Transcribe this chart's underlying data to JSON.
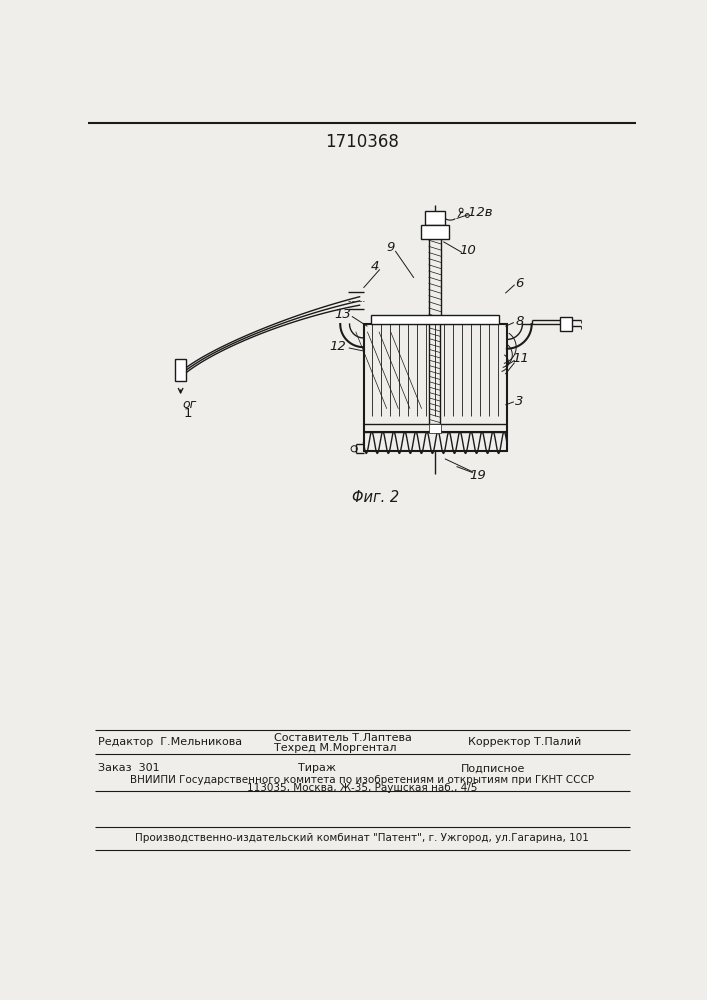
{
  "title": "1710368",
  "bg_color": "#f0eeea",
  "draw_color": "#1a1a1a",
  "label_fontsize": 9.5,
  "caption_fontsize": 10.5,
  "fig_caption": "Φиг. 2",
  "label_og": "ог",
  "footer_editor": "Редактор  Г.Мельникова",
  "footer_comp": "Составитель Т.Лаптева",
  "footer_tech": "Техред М.Моргентал",
  "footer_corr": "Корректор Т.Палий",
  "footer_order": "Заказ  301",
  "footer_tirazh": "Тираж",
  "footer_podp": "Подписное",
  "footer_vniip1": "ВНИИПИ Государственного комитета по изобретениям и открытиям при ГКНТ СССР",
  "footer_vniip2": "113035, Москва, Ж-35, Раушская наб., 4/5",
  "footer_patent": "Производственно-издательский комбинат \"Патент\", г. Ужгород, ул.Гагарина, 101"
}
